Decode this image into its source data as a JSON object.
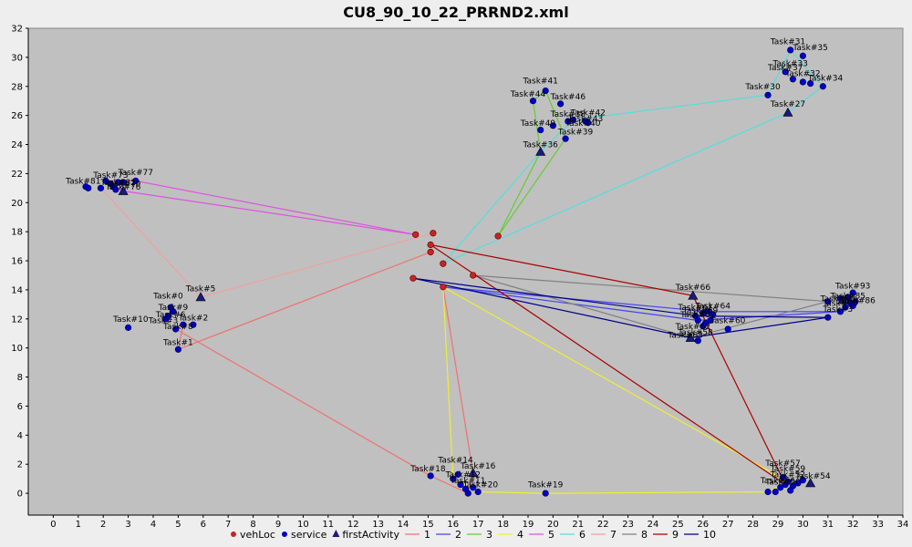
{
  "title": "CU8_90_10_22_PRRND2.xml",
  "chart_data": {
    "type": "scatter",
    "title": "CU8_90_10_22_PRRND2.xml",
    "xlim": [
      -1,
      34
    ],
    "ylim": [
      -1.5,
      32
    ],
    "xticks": [
      0,
      1,
      2,
      3,
      4,
      5,
      6,
      7,
      8,
      9,
      10,
      11,
      12,
      13,
      14,
      15,
      16,
      17,
      18,
      19,
      20,
      21,
      22,
      23,
      24,
      25,
      26,
      27,
      28,
      29,
      30,
      31,
      32,
      33,
      34
    ],
    "yticks": [
      0,
      2,
      4,
      6,
      8,
      10,
      12,
      14,
      16,
      18,
      20,
      22,
      24,
      26,
      28,
      30,
      32
    ],
    "grid": false,
    "legend_position": "bottom",
    "legend": [
      {
        "label": "vehLoc",
        "marker": "dot",
        "color": "#cc2222"
      },
      {
        "label": "service",
        "marker": "dot",
        "color": "#0000cc"
      },
      {
        "label": "firstActivity",
        "marker": "triangle",
        "color": "#1a1a80"
      },
      {
        "label": "1",
        "marker": "line",
        "color": "#f07070"
      },
      {
        "label": "2",
        "marker": "line",
        "color": "#4444ee"
      },
      {
        "label": "3",
        "marker": "line",
        "color": "#66cc33"
      },
      {
        "label": "4",
        "marker": "line",
        "color": "#eeee33"
      },
      {
        "label": "5",
        "marker": "line",
        "color": "#dd55dd"
      },
      {
        "label": "6",
        "marker": "line",
        "color": "#55dddd"
      },
      {
        "label": "7",
        "marker": "line",
        "color": "#f0a0a0"
      },
      {
        "label": "8",
        "marker": "line",
        "color": "#808080"
      },
      {
        "label": "9",
        "marker": "line",
        "color": "#aa0000"
      },
      {
        "label": "10",
        "marker": "line",
        "color": "#000088"
      }
    ],
    "vehLoc": [
      [
        14.5,
        17.8
      ],
      [
        15.2,
        17.9
      ],
      [
        15.1,
        17.1
      ],
      [
        15.1,
        16.6
      ],
      [
        15.6,
        15.8
      ],
      [
        17.8,
        17.7
      ],
      [
        14.4,
        14.8
      ],
      [
        15.6,
        14.2
      ],
      [
        16.8,
        15.0
      ]
    ],
    "service": [
      [
        5.2,
        11.6
      ],
      [
        4.9,
        11.3
      ],
      [
        5.6,
        11.6
      ],
      [
        5.0,
        9.9
      ],
      [
        3.0,
        11.4
      ],
      [
        4.5,
        12.0
      ],
      [
        4.8,
        12.5
      ],
      [
        4.6,
        12.2
      ],
      [
        4.7,
        12.8
      ],
      [
        15.1,
        1.2
      ],
      [
        16.0,
        1.0
      ],
      [
        16.3,
        0.6
      ],
      [
        16.5,
        0.3
      ],
      [
        16.8,
        0.4
      ],
      [
        17.0,
        0.1
      ],
      [
        16.6,
        0.0
      ],
      [
        19.7,
        0.0
      ],
      [
        16.2,
        1.3
      ],
      [
        19.2,
        27.0
      ],
      [
        19.7,
        27.7
      ],
      [
        20.3,
        26.8
      ],
      [
        19.5,
        25.0
      ],
      [
        20.0,
        25.3
      ],
      [
        20.6,
        25.6
      ],
      [
        20.8,
        25.7
      ],
      [
        21.3,
        25.6
      ],
      [
        21.4,
        25.5
      ],
      [
        20.5,
        24.4
      ],
      [
        28.6,
        27.4
      ],
      [
        29.5,
        30.5
      ],
      [
        30.0,
        30.1
      ],
      [
        29.3,
        29.0
      ],
      [
        29.6,
        28.5
      ],
      [
        30.0,
        28.3
      ],
      [
        30.3,
        28.2
      ],
      [
        30.8,
        28.0
      ],
      [
        1.3,
        21.1
      ],
      [
        1.4,
        21.0
      ],
      [
        1.9,
        21.0
      ],
      [
        2.1,
        21.5
      ],
      [
        2.3,
        21.3
      ],
      [
        2.4,
        21.1
      ],
      [
        2.5,
        20.9
      ],
      [
        2.6,
        21.4
      ],
      [
        3.3,
        21.5
      ],
      [
        2.8,
        21.4
      ],
      [
        25.7,
        12.2
      ],
      [
        26.0,
        12.4
      ],
      [
        26.2,
        12.5
      ],
      [
        26.4,
        12.3
      ],
      [
        25.8,
        11.9
      ],
      [
        26.1,
        11.7
      ],
      [
        26.3,
        11.9
      ],
      [
        27.0,
        11.3
      ],
      [
        25.8,
        10.5
      ],
      [
        26.0,
        11.5
      ],
      [
        31.0,
        13.2
      ],
      [
        31.5,
        13.4
      ],
      [
        31.8,
        13.5
      ],
      [
        32.0,
        13.8
      ],
      [
        32.1,
        13.2
      ],
      [
        31.7,
        12.8
      ],
      [
        31.5,
        12.5
      ],
      [
        31.0,
        12.1
      ],
      [
        32.0,
        12.9
      ],
      [
        31.9,
        13.1
      ],
      [
        28.6,
        0.1
      ],
      [
        28.9,
        0.1
      ],
      [
        29.1,
        0.4
      ],
      [
        29.3,
        0.6
      ],
      [
        29.4,
        0.8
      ],
      [
        29.6,
        0.5
      ],
      [
        29.8,
        0.7
      ],
      [
        30.0,
        0.9
      ],
      [
        29.2,
        1.1
      ],
      [
        29.5,
        0.2
      ]
    ],
    "firstActivity": [
      [
        5.9,
        13.5
      ],
      [
        16.8,
        1.4
      ],
      [
        19.5,
        23.5
      ],
      [
        29.4,
        26.2
      ],
      [
        2.8,
        20.8
      ],
      [
        25.6,
        13.6
      ],
      [
        25.5,
        10.7
      ],
      [
        30.3,
        0.7
      ],
      [
        31.6,
        13.3
      ]
    ],
    "labels": [
      {
        "text": "Task#0",
        "x": 4.6,
        "y": 13.4
      },
      {
        "text": "Task#5",
        "x": 5.9,
        "y": 13.9
      },
      {
        "text": "Task#9",
        "x": 4.8,
        "y": 12.6
      },
      {
        "text": "Task#6",
        "x": 4.7,
        "y": 12.1
      },
      {
        "text": "Task#3",
        "x": 4.4,
        "y": 11.7
      },
      {
        "text": "Task#2",
        "x": 5.6,
        "y": 11.9
      },
      {
        "text": "Task#8",
        "x": 5.0,
        "y": 11.3
      },
      {
        "text": "Task#10",
        "x": 3.1,
        "y": 11.8
      },
      {
        "text": "Task#1",
        "x": 5.0,
        "y": 10.2
      },
      {
        "text": "Task#14",
        "x": 16.1,
        "y": 2.1
      },
      {
        "text": "Task#16",
        "x": 17.0,
        "y": 1.7
      },
      {
        "text": "Task#18",
        "x": 15.0,
        "y": 1.5
      },
      {
        "text": "Task#12",
        "x": 16.4,
        "y": 1.1
      },
      {
        "text": "Task#11",
        "x": 16.6,
        "y": 0.7
      },
      {
        "text": "Task#20",
        "x": 17.1,
        "y": 0.4
      },
      {
        "text": "Task#19",
        "x": 19.7,
        "y": 0.4
      },
      {
        "text": "Task#41",
        "x": 19.5,
        "y": 28.2
      },
      {
        "text": "Task#44",
        "x": 19.0,
        "y": 27.3
      },
      {
        "text": "Task#46",
        "x": 20.6,
        "y": 27.1
      },
      {
        "text": "Task#42",
        "x": 21.4,
        "y": 26.0
      },
      {
        "text": "Task#38",
        "x": 20.6,
        "y": 25.9
      },
      {
        "text": "Task#43",
        "x": 21.3,
        "y": 25.6
      },
      {
        "text": "Task#40",
        "x": 21.2,
        "y": 25.3
      },
      {
        "text": "Task#49",
        "x": 19.4,
        "y": 25.3
      },
      {
        "text": "Task#39",
        "x": 20.9,
        "y": 24.7
      },
      {
        "text": "Task#36",
        "x": 19.5,
        "y": 23.8
      },
      {
        "text": "Task#31",
        "x": 29.4,
        "y": 30.9
      },
      {
        "text": "Task#35",
        "x": 30.3,
        "y": 30.5
      },
      {
        "text": "Task#33",
        "x": 29.5,
        "y": 29.4
      },
      {
        "text": "Task#37",
        "x": 29.3,
        "y": 29.1
      },
      {
        "text": "Task#32",
        "x": 30.0,
        "y": 28.7
      },
      {
        "text": "Task#34",
        "x": 30.9,
        "y": 28.4
      },
      {
        "text": "Task#30",
        "x": 28.4,
        "y": 27.8
      },
      {
        "text": "Task#27",
        "x": 29.4,
        "y": 26.6
      },
      {
        "text": "Task#77",
        "x": 3.3,
        "y": 21.9
      },
      {
        "text": "Task#73",
        "x": 2.3,
        "y": 21.7
      },
      {
        "text": "Task#76",
        "x": 2.8,
        "y": 20.9
      },
      {
        "text": "Task#81",
        "x": 1.2,
        "y": 21.3
      },
      {
        "text": "Task#82",
        "x": 2.6,
        "y": 21.2
      },
      {
        "text": "Task#70",
        "x": 2.8,
        "y": 21.1
      },
      {
        "text": "Task#66",
        "x": 25.6,
        "y": 14.0
      },
      {
        "text": "Task#64",
        "x": 26.4,
        "y": 12.7
      },
      {
        "text": "Task#61",
        "x": 25.7,
        "y": 12.6
      },
      {
        "text": "Task#69",
        "x": 25.9,
        "y": 12.4
      },
      {
        "text": "Task#67",
        "x": 25.8,
        "y": 12.1
      },
      {
        "text": "Task#60",
        "x": 27.0,
        "y": 11.7
      },
      {
        "text": "Task#62",
        "x": 25.6,
        "y": 11.3
      },
      {
        "text": "Task#58",
        "x": 25.7,
        "y": 10.9
      },
      {
        "text": "Task#63",
        "x": 25.3,
        "y": 10.7
      },
      {
        "text": "Task#93",
        "x": 32.0,
        "y": 14.1
      },
      {
        "text": "Task#85",
        "x": 31.8,
        "y": 13.4
      },
      {
        "text": "Task#86",
        "x": 32.2,
        "y": 13.1
      },
      {
        "text": "Task#88",
        "x": 31.4,
        "y": 13.2
      },
      {
        "text": "Task#90",
        "x": 31.5,
        "y": 12.9
      },
      {
        "text": "Task#3",
        "x": 31.4,
        "y": 12.5
      },
      {
        "text": "Task#57",
        "x": 29.2,
        "y": 1.9
      },
      {
        "text": "Task#59",
        "x": 29.4,
        "y": 1.5
      },
      {
        "text": "Task#52",
        "x": 29.4,
        "y": 1.1
      },
      {
        "text": "Task#54",
        "x": 30.4,
        "y": 1.0
      },
      {
        "text": "Task#56",
        "x": 29.0,
        "y": 0.7
      },
      {
        "text": "Task#50",
        "x": 29.2,
        "y": 0.6
      }
    ],
    "routes": [
      {
        "name": "1",
        "color": "#f07070",
        "points": [
          [
            15.1,
            16.6
          ],
          [
            5.0,
            9.9
          ],
          [
            5.2,
            11.6
          ],
          [
            4.9,
            11.3
          ],
          [
            15.1,
            1.2
          ],
          [
            16.6,
            0.0
          ],
          [
            16.8,
            1.4
          ],
          [
            15.6,
            14.2
          ]
        ]
      },
      {
        "name": "2",
        "color": "#4444ee",
        "points": [
          [
            15.6,
            14.2
          ],
          [
            26.2,
            12.5
          ],
          [
            31.5,
            12.5
          ],
          [
            25.8,
            11.9
          ],
          [
            15.6,
            14.2
          ]
        ]
      },
      {
        "name": "3",
        "color": "#66cc33",
        "points": [
          [
            17.8,
            17.7
          ],
          [
            19.5,
            23.5
          ],
          [
            19.2,
            27.0
          ],
          [
            19.7,
            27.7
          ],
          [
            20.5,
            24.4
          ],
          [
            17.8,
            17.7
          ]
        ]
      },
      {
        "name": "4",
        "color": "#eeee33",
        "points": [
          [
            15.6,
            14.2
          ],
          [
            16.0,
            1.0
          ],
          [
            17.0,
            0.1
          ],
          [
            19.7,
            0.0
          ],
          [
            28.6,
            0.1
          ],
          [
            29.4,
            0.8
          ],
          [
            15.6,
            14.2
          ]
        ]
      },
      {
        "name": "5",
        "color": "#dd55dd",
        "points": [
          [
            14.5,
            17.8
          ],
          [
            2.8,
            20.8
          ],
          [
            2.1,
            21.5
          ],
          [
            3.3,
            21.5
          ],
          [
            14.5,
            17.8
          ]
        ]
      },
      {
        "name": "6",
        "color": "#55dddd",
        "points": [
          [
            15.6,
            15.8
          ],
          [
            19.5,
            23.5
          ],
          [
            20.8,
            25.7
          ],
          [
            28.6,
            27.4
          ],
          [
            29.5,
            30.5
          ],
          [
            30.8,
            28.0
          ],
          [
            29.4,
            26.2
          ],
          [
            15.6,
            15.8
          ]
        ]
      },
      {
        "name": "7",
        "color": "#f0a0a0",
        "points": [
          [
            15.2,
            17.9
          ],
          [
            5.9,
            13.5
          ],
          [
            1.9,
            21.0
          ],
          [
            5.9,
            13.5
          ]
        ]
      },
      {
        "name": "8",
        "color": "#808080",
        "points": [
          [
            16.8,
            15.0
          ],
          [
            25.5,
            10.7
          ],
          [
            31.0,
            13.2
          ],
          [
            16.8,
            15.0
          ]
        ]
      },
      {
        "name": "9",
        "color": "#aa0000",
        "points": [
          [
            15.1,
            17.1
          ],
          [
            25.6,
            13.6
          ],
          [
            29.3,
            0.6
          ],
          [
            15.1,
            17.1
          ]
        ]
      },
      {
        "name": "10",
        "color": "#000088",
        "points": [
          [
            14.4,
            14.8
          ],
          [
            25.5,
            10.7
          ],
          [
            31.0,
            12.1
          ],
          [
            25.8,
            12.2
          ],
          [
            14.4,
            14.8
          ]
        ]
      }
    ]
  }
}
